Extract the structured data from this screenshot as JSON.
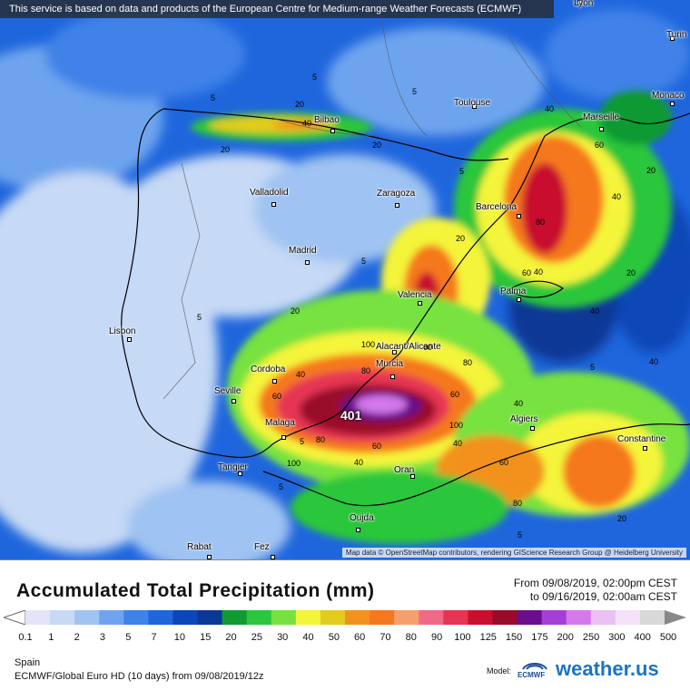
{
  "banner": {
    "text": "This service is based on data and products of the European Centre for Medium-range Weather Forecasts (ECMWF)"
  },
  "attribution": {
    "text": "Map data © OpenStreetMap contributors, rendering GIScience Research Group @ Heidelberg University"
  },
  "cities": [
    {
      "name": "Lyon"
    },
    {
      "name": "Turin"
    },
    {
      "name": "Toulouse"
    },
    {
      "name": "Monaco"
    },
    {
      "name": "Bilbao"
    },
    {
      "name": "Marseille"
    },
    {
      "name": "Valladolid"
    },
    {
      "name": "Zaragoza"
    },
    {
      "name": "Barcelona"
    },
    {
      "name": "Madrid"
    },
    {
      "name": "Valencia"
    },
    {
      "name": "Palma"
    },
    {
      "name": "Lisbon"
    },
    {
      "name": "Alacant/Alicante"
    },
    {
      "name": "Cordoba"
    },
    {
      "name": "Murcia"
    },
    {
      "name": "Seville"
    },
    {
      "name": "Malaga"
    },
    {
      "name": "Algiers"
    },
    {
      "name": "Constantine"
    },
    {
      "name": "Tangier"
    },
    {
      "name": "Oran"
    },
    {
      "name": "Oujda"
    },
    {
      "name": "Rabat"
    },
    {
      "name": "Fez"
    }
  ],
  "max_value": "401",
  "contour_labels": [
    "5",
    "5",
    "5",
    "5",
    "5",
    "5",
    "5",
    "5",
    "5",
    "5",
    "20",
    "20",
    "20",
    "20",
    "20",
    "20",
    "20",
    "20",
    "40",
    "40",
    "40",
    "40",
    "40",
    "40",
    "40",
    "40",
    "40",
    "40",
    "60",
    "60",
    "60",
    "60",
    "60",
    "60",
    "60",
    "80",
    "80",
    "80",
    "80",
    "80",
    "100",
    "100",
    "100"
  ],
  "legend": {
    "title": "Accumulated Total Precipitation (mm)",
    "date_from": "From 09/08/2019, 02:00pm CEST",
    "date_to": "to 09/16/2019, 02:00am CEST",
    "levels": [
      "0.1",
      "1",
      "2",
      "3",
      "5",
      "7",
      "10",
      "15",
      "20",
      "25",
      "30",
      "40",
      "50",
      "60",
      "70",
      "80",
      "90",
      "100",
      "125",
      "150",
      "175",
      "200",
      "250",
      "300",
      "400",
      "500"
    ],
    "colors": [
      "#e4e4f8",
      "#c6d9f5",
      "#9fc3f2",
      "#6ea4ee",
      "#3f82e8",
      "#1f66dd",
      "#0a47b8",
      "#0a3896",
      "#119a32",
      "#2bc63b",
      "#77e23f",
      "#f4f43a",
      "#e3cc1e",
      "#f2921e",
      "#f5781e",
      "#f59f6e",
      "#f06a86",
      "#e63553",
      "#c8102e",
      "#9a0a2a",
      "#6b0d8c",
      "#a63ed6",
      "#d478ec",
      "#ecbff5",
      "#f4e2f8",
      "#d8d8d8"
    ],
    "region": "Spain",
    "model": "ECMWF/Global Euro HD (10 days) from 09/08/2019/12z",
    "model_prefix": "Model:",
    "ecmwf_logo_text": "ECMWF",
    "brand": "weather.us"
  }
}
